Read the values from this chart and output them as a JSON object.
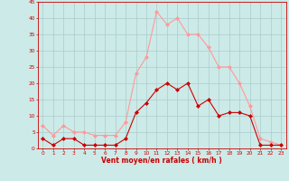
{
  "x": [
    0,
    1,
    2,
    3,
    4,
    5,
    6,
    7,
    8,
    9,
    10,
    11,
    12,
    13,
    14,
    15,
    16,
    17,
    18,
    19,
    20,
    21,
    22,
    23
  ],
  "wind_mean": [
    3,
    1,
    3,
    3,
    1,
    1,
    1,
    1,
    3,
    11,
    14,
    18,
    20,
    18,
    20,
    13,
    15,
    10,
    11,
    11,
    10,
    1,
    1,
    1
  ],
  "wind_gust": [
    7,
    4,
    7,
    5,
    5,
    4,
    4,
    4,
    8,
    23,
    28,
    42,
    38,
    40,
    35,
    35,
    31,
    25,
    25,
    20,
    13,
    3,
    2,
    1
  ],
  "xlabel": "Vent moyen/en rafales ( km/h )",
  "ylim": [
    0,
    45
  ],
  "xlim_min": -0.5,
  "xlim_max": 23.5,
  "yticks": [
    0,
    5,
    10,
    15,
    20,
    25,
    30,
    35,
    40,
    45
  ],
  "xticks": [
    0,
    1,
    2,
    3,
    4,
    5,
    6,
    7,
    8,
    9,
    10,
    11,
    12,
    13,
    14,
    15,
    16,
    17,
    18,
    19,
    20,
    21,
    22,
    23
  ],
  "color_mean": "#cc0000",
  "color_gust": "#ff9999",
  "bg_color": "#cceae8",
  "grid_color": "#aacccc",
  "axis_color": "#cc0000",
  "label_color": "#cc0000",
  "marker": "D",
  "markersize": 2.0,
  "linewidth": 0.8
}
